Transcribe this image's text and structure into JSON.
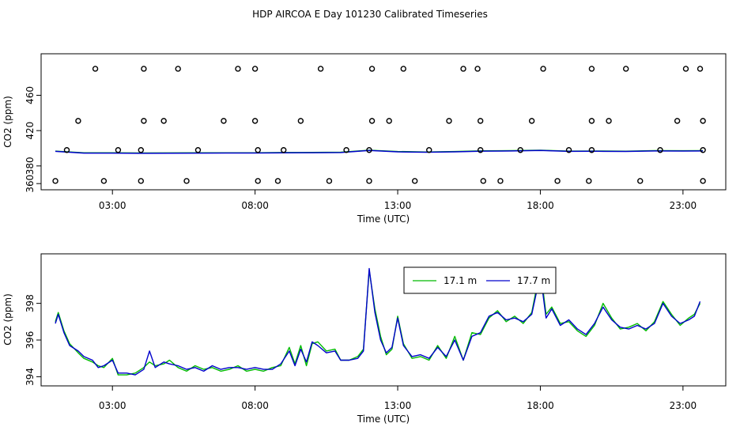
{
  "title": "HDP AIRCOA E  Day 101230  Calibrated Timeseries",
  "colors": {
    "series_17_1": "#00bb00",
    "series_17_7": "#0000cc",
    "axis": "#000000",
    "points": "#000000"
  },
  "chart_data": [
    {
      "type": "scatter",
      "xlabel": "Time (UTC)",
      "ylabel": "CO2 (ppm)",
      "xlim": [
        0.5,
        24.5
      ],
      "ylim": [
        353,
        507
      ],
      "xticks": [
        3,
        8,
        13,
        18,
        23
      ],
      "xtick_labels": [
        "03:00",
        "08:00",
        "13:00",
        "18:00",
        "23:00"
      ],
      "yticks": [
        360,
        380,
        420,
        460
      ],
      "ytick_labels": [
        "360",
        "380",
        "420",
        "460"
      ],
      "grid": false,
      "points": {
        "x": [
          2.4,
          4.1,
          5.3,
          7.4,
          8.0,
          10.3,
          12.1,
          13.2,
          15.3,
          15.8,
          18.1,
          19.8,
          21.0,
          23.1,
          23.6,
          1.8,
          4.1,
          4.8,
          6.9,
          8.0,
          9.6,
          12.1,
          12.7,
          14.8,
          15.9,
          17.7,
          19.8,
          20.4,
          22.8,
          23.7,
          1.4,
          3.2,
          4.0,
          6.0,
          8.1,
          9.0,
          11.2,
          12.0,
          14.1,
          15.9,
          17.3,
          19.0,
          19.8,
          22.2,
          23.7,
          1.0,
          2.7,
          4.0,
          5.6,
          8.1,
          8.8,
          10.6,
          12.0,
          13.6,
          16.0,
          16.6,
          18.6,
          19.7,
          21.5,
          23.7
        ],
        "y": [
          490,
          490,
          490,
          490,
          490,
          490,
          490,
          490,
          490,
          490,
          490,
          490,
          490,
          490,
          490,
          431,
          431,
          431,
          431,
          431,
          431,
          431,
          431,
          431,
          431,
          431,
          431,
          431,
          431,
          431,
          398,
          398,
          398,
          398,
          398,
          398,
          398,
          398,
          398,
          398,
          398,
          398,
          398,
          398,
          398,
          363,
          363,
          363,
          363,
          363,
          363,
          363,
          363,
          363,
          363,
          363,
          363,
          363,
          363,
          363
        ]
      },
      "lines": {
        "x": [
          1.0,
          2.0,
          3.0,
          4.0,
          5.0,
          6.0,
          7.0,
          8.0,
          9.0,
          10.0,
          11.0,
          12.0,
          13.0,
          14.0,
          15.0,
          16.0,
          17.0,
          18.0,
          19.0,
          20.0,
          21.0,
          22.0,
          23.0,
          23.7
        ],
        "y": [
          396.5,
          394.5,
          394.5,
          394.3,
          394.4,
          394.5,
          394.6,
          394.6,
          394.9,
          395.0,
          395.2,
          397.5,
          396.0,
          395.5,
          396.0,
          396.8,
          397.0,
          397.5,
          396.5,
          396.6,
          396.4,
          397.0,
          396.9,
          397.0
        ]
      }
    },
    {
      "type": "line",
      "xlabel": "Time (UTC)",
      "ylabel": "CO2 (ppm)",
      "xlim": [
        0.5,
        24.5
      ],
      "ylim": [
        393.5,
        400.7
      ],
      "xticks": [
        3,
        8,
        13,
        18,
        23
      ],
      "xtick_labels": [
        "03:00",
        "08:00",
        "13:00",
        "18:00",
        "23:00"
      ],
      "yticks": [
        394,
        396,
        398
      ],
      "ytick_labels": [
        "394",
        "396",
        "398"
      ],
      "grid": false,
      "legend": "top-center",
      "x": [
        1.0,
        1.1,
        1.3,
        1.5,
        1.8,
        2.0,
        2.3,
        2.5,
        2.7,
        3.0,
        3.2,
        3.5,
        3.8,
        4.1,
        4.3,
        4.5,
        4.8,
        5.0,
        5.3,
        5.6,
        5.9,
        6.2,
        6.5,
        6.8,
        7.1,
        7.4,
        7.7,
        8.0,
        8.3,
        8.6,
        8.9,
        9.2,
        9.4,
        9.6,
        9.8,
        10.0,
        10.2,
        10.5,
        10.8,
        11.0,
        11.3,
        11.6,
        11.8,
        12.0,
        12.2,
        12.4,
        12.6,
        12.8,
        13.0,
        13.2,
        13.5,
        13.8,
        14.1,
        14.4,
        14.7,
        15.0,
        15.3,
        15.6,
        15.9,
        16.2,
        16.5,
        16.8,
        17.1,
        17.4,
        17.7,
        18.0,
        18.2,
        18.4,
        18.7,
        19.0,
        19.3,
        19.6,
        19.9,
        20.2,
        20.5,
        20.8,
        21.1,
        21.4,
        21.7,
        22.0,
        22.3,
        22.6,
        22.9,
        23.2,
        23.4,
        23.6
      ],
      "series": [
        {
          "name": "17.1 m",
          "color": "#00bb00",
          "values": [
            397.0,
            397.5,
            396.5,
            395.8,
            395.3,
            395.0,
            394.8,
            394.6,
            394.5,
            395.0,
            394.1,
            394.1,
            394.2,
            394.5,
            394.8,
            394.6,
            394.7,
            394.9,
            394.5,
            394.3,
            394.6,
            394.4,
            394.5,
            394.3,
            394.4,
            394.6,
            394.3,
            394.4,
            394.3,
            394.5,
            394.6,
            395.6,
            394.7,
            395.7,
            394.6,
            395.8,
            395.9,
            395.4,
            395.5,
            394.9,
            394.9,
            395.1,
            395.5,
            399.8,
            397.7,
            396.2,
            395.2,
            395.5,
            397.3,
            395.8,
            395.0,
            395.1,
            394.9,
            395.7,
            395.0,
            396.2,
            394.9,
            396.4,
            396.3,
            397.2,
            397.6,
            397.0,
            397.3,
            396.9,
            397.5,
            399.9,
            397.4,
            397.8,
            396.9,
            397.0,
            396.5,
            396.2,
            396.8,
            398.0,
            397.2,
            396.6,
            396.7,
            396.9,
            396.5,
            397.0,
            398.1,
            397.4,
            396.8,
            397.2,
            397.4,
            398.0
          ]
        },
        {
          "name": "17.7 m",
          "color": "#0000cc",
          "values": [
            396.9,
            397.4,
            396.4,
            395.7,
            395.4,
            395.1,
            394.9,
            394.5,
            394.6,
            394.9,
            394.2,
            394.2,
            394.1,
            394.4,
            395.4,
            394.5,
            394.8,
            394.7,
            394.6,
            394.4,
            394.5,
            394.3,
            394.6,
            394.4,
            394.5,
            394.5,
            394.4,
            394.5,
            394.4,
            394.4,
            394.7,
            395.4,
            394.6,
            395.5,
            394.8,
            395.9,
            395.7,
            395.3,
            395.4,
            394.9,
            394.9,
            395.0,
            395.4,
            399.9,
            397.5,
            396.0,
            395.3,
            395.6,
            397.2,
            395.7,
            395.1,
            395.2,
            395.0,
            395.6,
            395.1,
            396.0,
            394.9,
            396.2,
            396.4,
            397.3,
            397.5,
            397.1,
            397.2,
            397.0,
            397.4,
            399.6,
            397.2,
            397.7,
            396.8,
            397.1,
            396.6,
            396.3,
            396.9,
            397.8,
            397.1,
            396.7,
            396.6,
            396.8,
            396.6,
            396.9,
            398.0,
            397.3,
            396.9,
            397.1,
            397.3,
            398.1
          ]
        }
      ]
    }
  ]
}
